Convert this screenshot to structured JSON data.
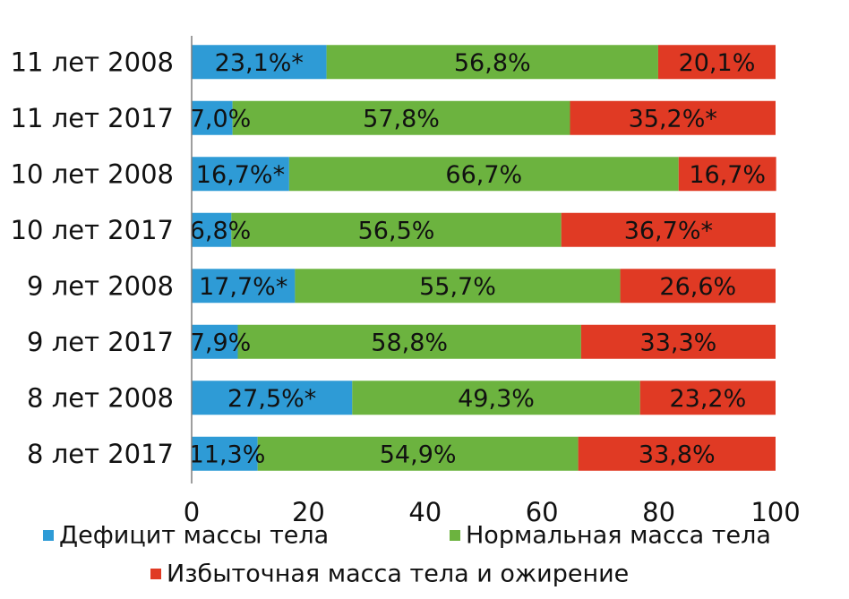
{
  "chart_data": {
    "type": "bar",
    "orientation": "horizontal",
    "stacked": true,
    "categories": [
      "11 лет 2008",
      "11 лет 2017",
      "10 лет 2008",
      "10 лет 2017",
      "9 лет 2008",
      "9 лет 2017",
      "8 лет 2008",
      "8 лет 2017"
    ],
    "series": [
      {
        "name": "Дефицит массы тела",
        "color": "#2e9bd6",
        "values": [
          23.1,
          7.0,
          16.7,
          6.8,
          17.7,
          7.9,
          27.5,
          11.3
        ],
        "labels": [
          "23,1%*",
          "7,0%",
          "16,7%*",
          "6,8%",
          "17,7%*",
          "7,9%",
          "27,5%*",
          "11,3%"
        ]
      },
      {
        "name": "Нормальная масса тела",
        "color": "#6cb33f",
        "values": [
          56.8,
          57.8,
          66.7,
          56.5,
          55.7,
          58.8,
          49.3,
          54.9
        ],
        "labels": [
          "56,8%",
          "57,8%",
          "66,7%",
          "56,5%",
          "55,7%",
          "58,8%",
          "49,3%",
          "54,9%"
        ]
      },
      {
        "name": "Избыточная масса тела и ожирение",
        "color": "#e03a24",
        "values": [
          20.1,
          35.2,
          16.7,
          36.7,
          26.6,
          33.3,
          23.2,
          33.8
        ],
        "labels": [
          "20,1%",
          "35,2%*",
          "16,7%",
          "36,7%*",
          "26,6%",
          "33,3%",
          "23,2%",
          "33,8%"
        ]
      }
    ],
    "xlim": [
      0,
      100
    ],
    "xticks": [
      "0",
      "20",
      "40",
      "60",
      "80",
      "100"
    ],
    "grid": false,
    "legend_position": "bottom"
  }
}
